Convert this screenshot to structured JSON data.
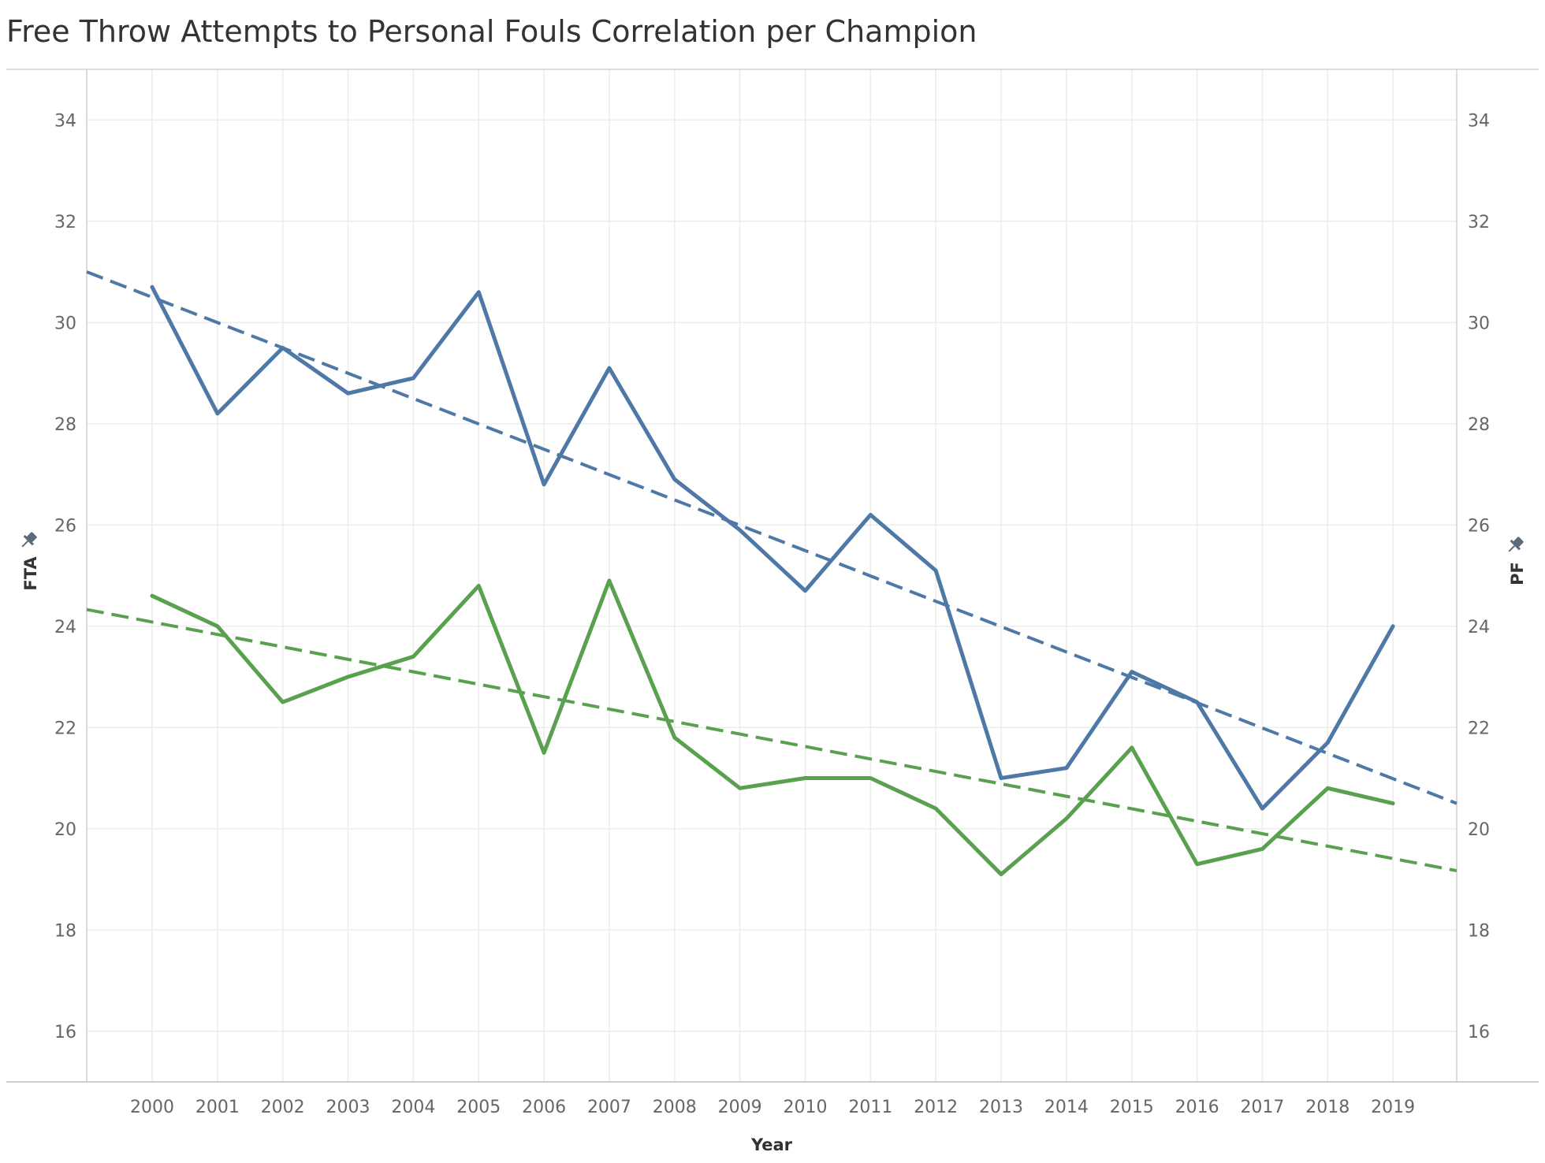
{
  "chart_data": {
    "type": "line",
    "title": "Free Throw Attempts to Personal Fouls Correlation per Champion",
    "xlabel": "Year",
    "ylabel_left": "FTA",
    "ylabel_right": "PF",
    "categories": [
      "2000",
      "2001",
      "2002",
      "2003",
      "2004",
      "2005",
      "2006",
      "2007",
      "2008",
      "2009",
      "2010",
      "2011",
      "2012",
      "2013",
      "2014",
      "2015",
      "2016",
      "2017",
      "2018",
      "2019"
    ],
    "ylim": [
      15,
      35
    ],
    "yticks": [
      16,
      18,
      20,
      22,
      24,
      26,
      28,
      30,
      32,
      34
    ],
    "grid": true,
    "series": [
      {
        "axis": "left",
        "color": "#4e79a7",
        "values": [
          30.7,
          28.2,
          29.5,
          28.6,
          28.9,
          30.6,
          26.8,
          29.1,
          26.9,
          25.9,
          24.7,
          26.2,
          25.1,
          21.0,
          21.2,
          23.1,
          22.5,
          20.4,
          21.7,
          24.0
        ],
        "trend": {
          "start": 31.0,
          "end": 20.5
        }
      },
      {
        "axis": "right",
        "color": "#59a14f",
        "values": [
          24.6,
          24.0,
          22.5,
          23.0,
          23.4,
          24.8,
          21.5,
          24.9,
          21.8,
          20.8,
          21.0,
          21.0,
          20.4,
          19.1,
          20.2,
          21.6,
          19.3,
          19.6,
          20.8,
          20.5
        ],
        "trend": {
          "start": 24.33,
          "end": 19.17
        }
      }
    ]
  }
}
